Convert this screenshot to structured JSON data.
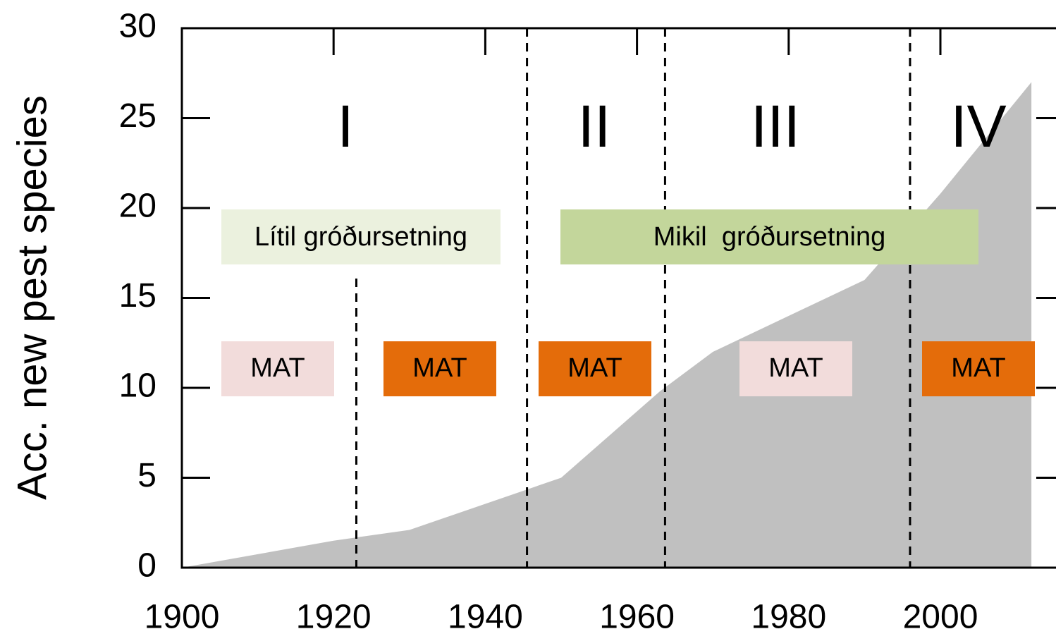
{
  "chart_data": {
    "type": "area",
    "y_label": "Acc. new pest species",
    "x": [
      1900,
      1920,
      1930,
      1950,
      1963,
      1970,
      1990,
      2000,
      2012
    ],
    "values": [
      0,
      1.5,
      2.1,
      5,
      9.8,
      12,
      16,
      20.8,
      27
    ],
    "color": "#c0c0c0",
    "xlim": [
      1900,
      2015
    ],
    "ylim": [
      0,
      30
    ],
    "xticks": [
      1900,
      1920,
      1940,
      1960,
      1980,
      2000
    ],
    "yticks": [
      0,
      5,
      10,
      15,
      20,
      25,
      30
    ],
    "period_lines": [
      1923,
      1945.5,
      1963.7,
      1996
    ],
    "periods": [
      "I",
      "II",
      "III",
      "IV"
    ],
    "planting": [
      {
        "label": "Lítil gróðursetning",
        "color": "#ebf1de"
      },
      {
        "label": "Mikil  gróðursetning",
        "color": "#c3d69b"
      }
    ],
    "assessments": [
      {
        "label": "MAT",
        "color": "#f2dcdb"
      },
      {
        "label": "MAT",
        "color": "#e46c0a"
      },
      {
        "label": "MAT",
        "color": "#e46c0a"
      },
      {
        "label": "MAT",
        "color": "#f2dcdb"
      },
      {
        "label": "MAT",
        "color": "#e46c0a"
      }
    ]
  }
}
